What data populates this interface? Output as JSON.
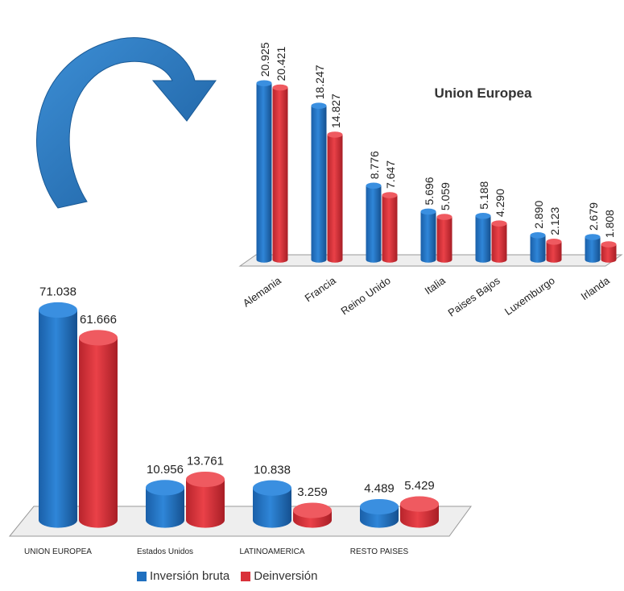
{
  "colors": {
    "inversion": "#1f6fbf",
    "inversion_top": "#3a8fe0",
    "deinversion": "#d9313a",
    "deinversion_top": "#ef5a60",
    "arrow": "#2d7cc4",
    "floor": "#eeeeee",
    "floor_edge": "#999999"
  },
  "icons": {
    "curved-arrow": "curved-arrow-icon"
  },
  "legend": {
    "inversion": "Inversión bruta",
    "deinversion": "Deinversión"
  },
  "chart_data": [
    {
      "type": "bar",
      "title": "",
      "categories": [
        "UNION EUROPEA",
        "Estados Unidos",
        "LATINOAMERICA",
        "RESTO PAISES"
      ],
      "series": [
        {
          "name": "Inversión bruta",
          "values": [
            71.038,
            10.956,
            10.838,
            4.489
          ],
          "labels": [
            "71.038",
            "10.956",
            "10.838",
            "4.489"
          ]
        },
        {
          "name": "Deinversión",
          "values": [
            61.666,
            13.761,
            3.259,
            5.429
          ],
          "labels": [
            "61.666",
            "13.761",
            "3.259",
            "5.429"
          ]
        }
      ],
      "ylim": [
        0,
        75
      ],
      "grid": false,
      "legend_position": "bottom"
    },
    {
      "type": "bar",
      "title": "Union Europea",
      "categories": [
        "Alemania",
        "Francia",
        "Reino Unido",
        "Italia",
        "Paises Bajos",
        "Luxemburgo",
        "Irlanda"
      ],
      "series": [
        {
          "name": "Inversión bruta",
          "values": [
            20.925,
            18.247,
            8.776,
            5.696,
            5.188,
            2.89,
            2.679
          ],
          "labels": [
            "20.925",
            "18.247",
            "8.776",
            "5.696",
            "5.188",
            "2.890",
            "2.679"
          ]
        },
        {
          "name": "Deinversión",
          "values": [
            20.421,
            14.827,
            7.647,
            5.059,
            4.29,
            2.123,
            1.808
          ],
          "labels": [
            "20.421",
            "14.827",
            "7.647",
            "5.059",
            "4.290",
            "2.123",
            "1.808"
          ]
        }
      ],
      "ylim": [
        0,
        22
      ],
      "grid": false
    }
  ]
}
